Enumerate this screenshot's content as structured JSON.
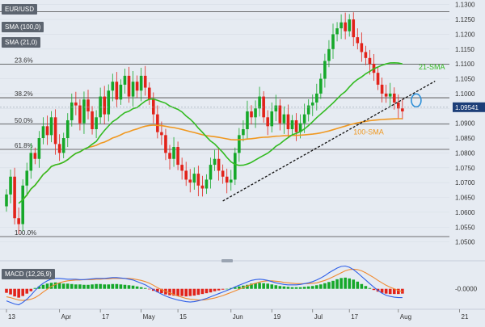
{
  "chart_data": [
    {
      "type": "candlestick",
      "symbol": "EUR/USD",
      "indicators": [
        "SMA (100,0)",
        "SMA (21,0)"
      ],
      "ylim": [
        1.045,
        1.131
      ],
      "y_ticks": [
        "1.0500",
        "1.0550",
        "1.0600",
        "1.0650",
        "1.0700",
        "1.0750",
        "1.0800",
        "1.0850",
        "1.0900",
        "1.0950",
        "1.1000",
        "1.1050",
        "1.1100",
        "1.1150",
        "1.1200",
        "1.1250",
        "1.1300"
      ],
      "x_ticks": [
        {
          "label": "13",
          "bar": 0
        },
        {
          "label": "Apr",
          "bar": 13
        },
        {
          "label": "17",
          "bar": 23
        },
        {
          "label": "May",
          "bar": 33
        },
        {
          "label": "15",
          "bar": 42
        },
        {
          "label": "Jun",
          "bar": 55
        },
        {
          "label": "19",
          "bar": 65
        },
        {
          "label": "Jul",
          "bar": 75
        },
        {
          "label": "17",
          "bar": 84
        },
        {
          "label": "Aug",
          "bar": 96
        },
        {
          "label": "21",
          "bar": 111
        }
      ],
      "current_price": "1.09541",
      "current_price_value": 1.0954,
      "fib_levels": [
        {
          "label": "23.6%",
          "value": 1.1099
        },
        {
          "label": "38.2%",
          "value": 1.0986
        },
        {
          "label": "50.0%",
          "value": 1.0897
        },
        {
          "label": "61.8%",
          "value": 1.0812
        },
        {
          "label": "100.0%",
          "value": 1.0518
        }
      ],
      "top_level": 1.1276,
      "annotations": [
        {
          "text": "21-SMA",
          "bar": 101,
          "value": 1.1082,
          "color": "#33bb22"
        },
        {
          "text": "100-SMA",
          "bar": 85,
          "value": 1.0862,
          "color": "#f09820"
        }
      ],
      "trendline": {
        "from_bar": 53,
        "from_value": 1.0638,
        "to_bar": 105,
        "to_value": 1.1042
      },
      "highlight_circle": {
        "bar": 98,
        "value": 1.0977
      },
      "close_series": [
        1.066,
        1.072,
        1.058,
        1.056,
        1.069,
        1.074,
        1.08,
        1.078,
        1.085,
        1.089,
        1.086,
        1.092,
        1.083,
        1.08,
        1.085,
        1.091,
        1.097,
        1.096,
        1.09,
        1.098,
        1.094,
        1.088,
        1.092,
        1.099,
        1.093,
        1.101,
        1.104,
        1.098,
        1.103,
        1.106,
        1.099,
        1.104,
        1.101,
        1.106,
        1.102,
        1.098,
        1.093,
        1.087,
        1.086,
        1.08,
        1.078,
        1.082,
        1.076,
        1.074,
        1.071,
        1.07,
        1.073,
        1.069,
        1.068,
        1.071,
        1.076,
        1.078,
        1.074,
        1.072,
        1.07,
        1.071,
        1.08,
        1.086,
        1.088,
        1.094,
        1.092,
        1.095,
        1.099,
        1.092,
        1.089,
        1.094,
        1.096,
        1.09,
        1.093,
        1.088,
        1.091,
        1.087,
        1.09,
        1.093,
        1.096,
        1.097,
        1.1,
        1.105,
        1.111,
        1.115,
        1.12,
        1.122,
        1.124,
        1.121,
        1.125,
        1.119,
        1.117,
        1.114,
        1.112,
        1.11,
        1.107,
        1.103,
        1.1,
        1.099,
        1.1,
        1.097,
        1.095,
        1.094
      ]
    },
    {
      "type": "macd",
      "label": "MACD (12,26,9)",
      "y_tick": "-0.0000",
      "histogram": [
        -0.001,
        -0.0014,
        -0.0019,
        -0.0022,
        -0.0018,
        -0.0012,
        -0.0006,
        0.0002,
        0.0006,
        0.001,
        0.0013,
        0.0015,
        0.0016,
        0.0015,
        0.0013,
        0.0013,
        0.0012,
        0.0011,
        0.0011,
        0.001,
        0.001,
        0.0011,
        0.0012,
        0.0012,
        0.0011,
        0.0011,
        0.0012,
        0.0012,
        0.0011,
        0.001,
        0.0009,
        0.0008,
        0.0006,
        0.0004,
        0.0002,
        -0.0001,
        -0.0005,
        -0.0008,
        -0.0011,
        -0.0014,
        -0.0016,
        -0.0017,
        -0.0018,
        -0.0018,
        -0.0019,
        -0.0018,
        -0.0017,
        -0.0015,
        -0.0013,
        -0.0011,
        -0.0009,
        -0.0006,
        -0.0004,
        -0.0002,
        0.0,
        0.0002,
        0.0004,
        0.0006,
        0.0008,
        0.001,
        0.0013,
        0.0014,
        0.0015,
        0.0014,
        0.0013,
        0.0011,
        0.0009,
        0.0007,
        0.0006,
        0.0005,
        0.0004,
        0.0004,
        0.0004,
        0.0005,
        0.0006,
        0.0007,
        0.0009,
        0.0011,
        0.0014,
        0.0017,
        0.002,
        0.0024,
        0.0027,
        0.0028,
        0.0026,
        0.0023,
        0.0018,
        0.0012,
        0.0007,
        0.0002,
        -0.0003,
        -0.0007,
        -0.001,
        -0.0012,
        -0.0013,
        -0.0013,
        -0.0013,
        -0.0012
      ],
      "macd_line": [
        -0.003,
        -0.0034,
        -0.0038,
        -0.004,
        -0.0034,
        -0.0026,
        -0.0016,
        -0.0004,
        0.0006,
        0.0014,
        0.002,
        0.0024,
        0.0026,
        0.0026,
        0.0025,
        0.0024,
        0.0024,
        0.0024,
        0.0023,
        0.0023,
        0.0024,
        0.0025,
        0.0026,
        0.0026,
        0.0026,
        0.0027,
        0.0028,
        0.0028,
        0.0027,
        0.0026,
        0.0024,
        0.0022,
        0.0018,
        0.0014,
        0.001,
        0.0004,
        -0.0002,
        -0.0008,
        -0.0013,
        -0.0018,
        -0.0022,
        -0.0025,
        -0.0028,
        -0.003,
        -0.0032,
        -0.0033,
        -0.0032,
        -0.003,
        -0.0027,
        -0.0024,
        -0.002,
        -0.0016,
        -0.0012,
        -0.0008,
        -0.0004,
        0.0,
        0.0005,
        0.0009,
        0.0013,
        0.0017,
        0.0021,
        0.0023,
        0.0024,
        0.0023,
        0.0021,
        0.0018,
        0.0015,
        0.0013,
        0.0011,
        0.001,
        0.001,
        0.001,
        0.0011,
        0.0013,
        0.0015,
        0.0018,
        0.0022,
        0.0027,
        0.0033,
        0.004,
        0.0046,
        0.0052,
        0.0056,
        0.0057,
        0.0054,
        0.0048,
        0.004,
        0.0031,
        0.0022,
        0.0013,
        0.0004,
        -0.0004,
        -0.0011,
        -0.0016,
        -0.0019,
        -0.0021,
        -0.0022,
        -0.0022
      ],
      "signal_line": [
        -0.002,
        -0.0022,
        -0.0025,
        -0.0028,
        -0.0029,
        -0.0028,
        -0.0026,
        -0.0022,
        -0.0016,
        -0.0008,
        -0.0001,
        0.0006,
        0.0011,
        0.0015,
        0.0018,
        0.002,
        0.0021,
        0.0022,
        0.0022,
        0.0023,
        0.0023,
        0.0023,
        0.0024,
        0.0024,
        0.0025,
        0.0025,
        0.0026,
        0.0026,
        0.0026,
        0.0026,
        0.0026,
        0.0025,
        0.0023,
        0.0021,
        0.0018,
        0.0014,
        0.0009,
        0.0003,
        -0.0002,
        -0.0006,
        -0.001,
        -0.0014,
        -0.0018,
        -0.0021,
        -0.0024,
        -0.0026,
        -0.0027,
        -0.0028,
        -0.0028,
        -0.0027,
        -0.0025,
        -0.0023,
        -0.002,
        -0.0017,
        -0.0013,
        -0.0009,
        -0.0005,
        -0.0001,
        0.0003,
        0.0007,
        0.0011,
        0.0014,
        0.0017,
        0.0019,
        0.002,
        0.002,
        0.0019,
        0.0018,
        0.0016,
        0.0015,
        0.0014,
        0.0013,
        0.0013,
        0.0013,
        0.0013,
        0.0014,
        0.0015,
        0.0018,
        0.0021,
        0.0025,
        0.003,
        0.0035,
        0.004,
        0.0045,
        0.0048,
        0.0049,
        0.0048,
        0.0045,
        0.004,
        0.0034,
        0.0028,
        0.0021,
        0.0015,
        0.0009,
        0.0004,
        0.0,
        -0.0004,
        -0.0007
      ],
      "range": [
        -0.0045,
        0.006
      ]
    }
  ],
  "colors": {
    "bull": "#16a82a",
    "bear": "#e2231a",
    "sma21": "#33bb22",
    "sma100": "#f09820",
    "macd": "#3060e8",
    "signal": "#f08a30",
    "price_tag": "#1c3e78",
    "circle": "#2e90d8",
    "trendline": "#111111",
    "level": "#444444"
  }
}
